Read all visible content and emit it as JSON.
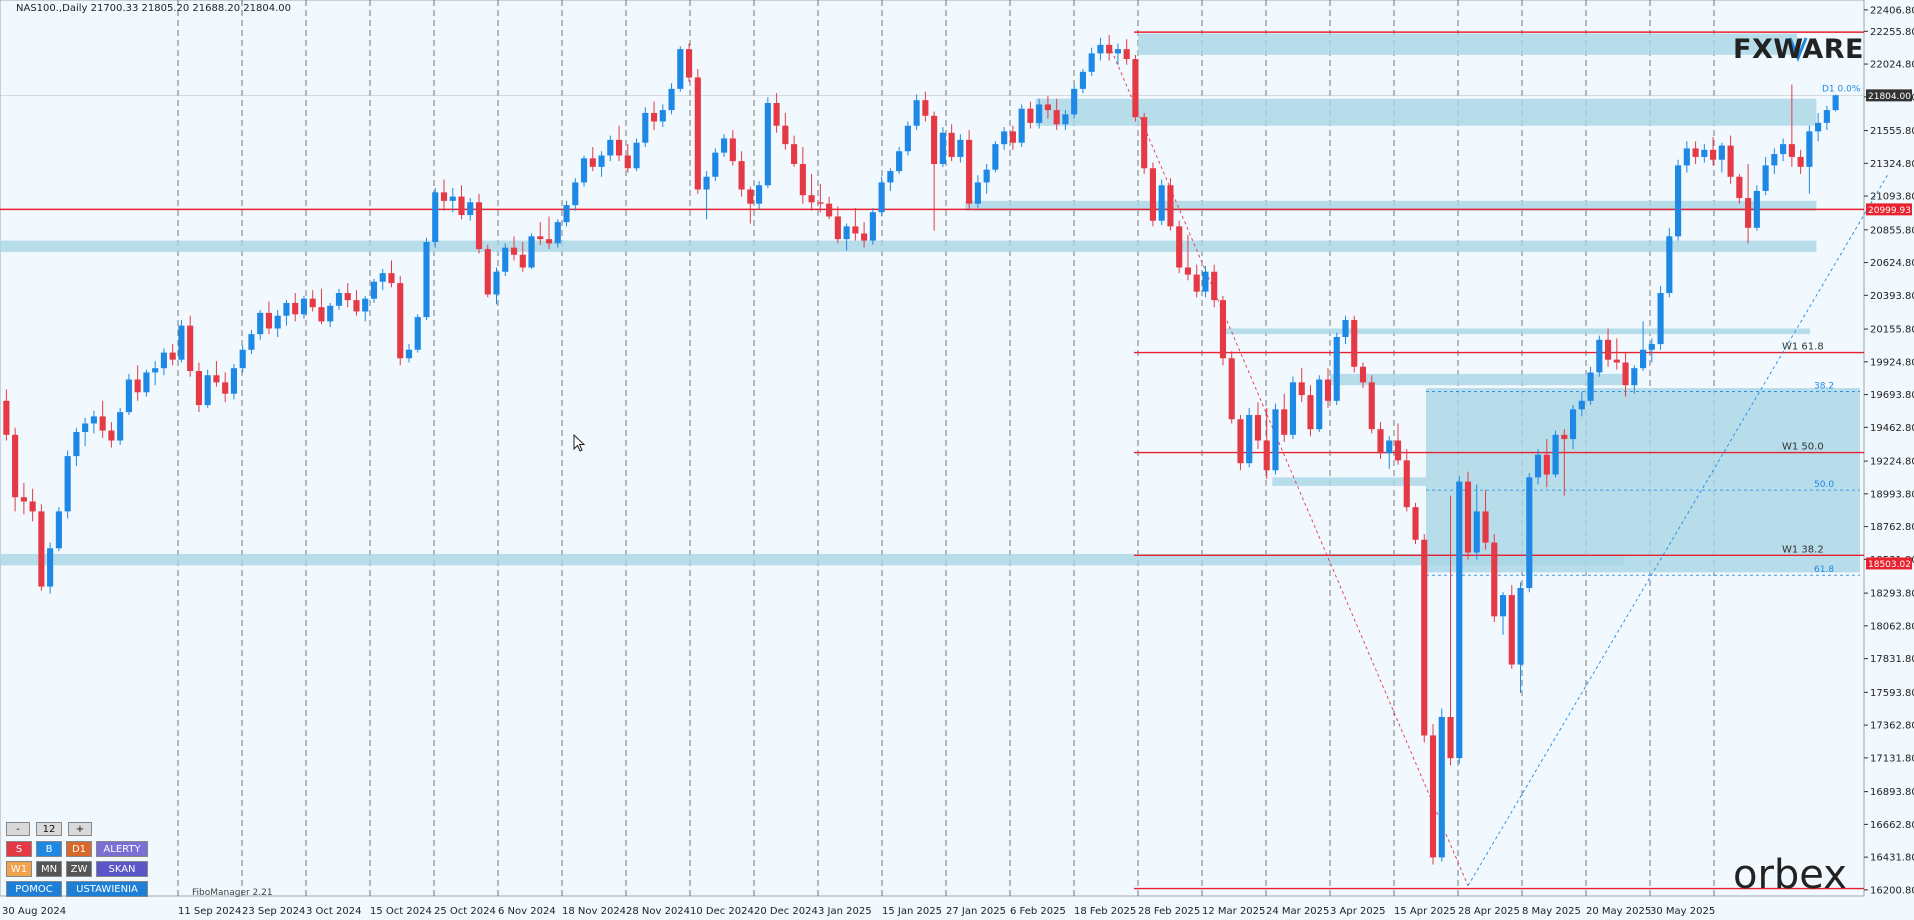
{
  "header": {
    "symbol_line": "NAS100.,Daily  21700.33 21805.20 21688.20 21804.00"
  },
  "brand": {
    "fxware": "FXWARE",
    "orbex": "orbex"
  },
  "indicator_label": "FiboManager 2.21",
  "panel": {
    "minus": "-",
    "count": "12",
    "plus": "+",
    "s": "S",
    "b": "B",
    "d1": "D1",
    "alerty": "ALERTY",
    "w1": "W1",
    "mn": "MN",
    "zw": "ZW",
    "skan": "SKAN",
    "pomoc": "POMOC",
    "ustawienia": "USTAWIENIA"
  },
  "colors": {
    "bull": "#1e88e5",
    "bear": "#e53946",
    "zone": "#a9d6e6",
    "level": "#e8212e",
    "bg": "#f1f8fe"
  },
  "chart_data": {
    "type": "candlestick",
    "ylim": [
      16200,
      22406
    ],
    "y_ticks": [
      "22406.80",
      "22255.80",
      "22024.80",
      "21793.80",
      "21555.80",
      "21324.80",
      "21093.80",
      "20855.80",
      "20624.80",
      "20393.80",
      "20155.80",
      "19924.80",
      "19693.80",
      "19462.80",
      "19224.80",
      "18993.80",
      "18762.80",
      "18531.80",
      "18293.80",
      "18062.80",
      "17831.80",
      "17593.80",
      "17362.80",
      "17131.80",
      "16893.80",
      "16662.80",
      "16431.80",
      "16200.80"
    ],
    "x_ticks": [
      "30 Aug 2024",
      "11 Sep 2024",
      "23 Sep 2024",
      "3 Oct 2024",
      "15 Oct 2024",
      "25 Oct 2024",
      "6 Nov 2024",
      "18 Nov 2024",
      "28 Nov 2024",
      "10 Dec 2024",
      "20 Dec 2024",
      "3 Jan 2025",
      "15 Jan 2025",
      "27 Jan 2025",
      "6 Feb 2025",
      "18 Feb 2025",
      "28 Feb 2025",
      "12 Mar 2025",
      "24 Mar 2025",
      "3 Apr 2025",
      "15 Apr 2025",
      "28 Apr 2025",
      "8 May 2025",
      "20 May 2025",
      "30 May 2025"
    ],
    "price_tags": [
      {
        "value": 21804.0,
        "label": "21804.00",
        "color": "#333333"
      },
      {
        "value": 20999.93,
        "label": "20999.93",
        "color": "#e8212e"
      },
      {
        "value": 18503.02,
        "label": "18503.02",
        "color": "#e8212e"
      }
    ],
    "levels": [
      {
        "value": 20999.93,
        "label": "",
        "from_tick": -1
      },
      {
        "value": 22250,
        "label": "",
        "from_tick": 15
      },
      {
        "value": 19990,
        "label": "W1 61.8",
        "from_tick": 15
      },
      {
        "value": 19285,
        "label": "W1 50.0",
        "from_tick": 15
      },
      {
        "value": 18560,
        "label": "W1 38.2",
        "from_tick": 15
      },
      {
        "value": 16210,
        "label": "",
        "from_tick": 15
      }
    ],
    "fib_dashed": [
      {
        "value": 19715,
        "label": "38.2"
      },
      {
        "value": 19020,
        "label": "50.0"
      },
      {
        "value": 18420,
        "label": "61.8"
      }
    ],
    "fib_top_label": "D1 0.0%",
    "zones": [
      {
        "y1": 22240,
        "y2": 22090,
        "from_tick": 15,
        "to_tick": 25.3
      },
      {
        "y1": 21780,
        "y2": 21590,
        "from_tick": 13.4,
        "to_tick": 25.6
      },
      {
        "y1": 21060,
        "y2": 20990,
        "from_tick": 12.3,
        "to_tick": 25.6
      },
      {
        "y1": 20780,
        "y2": 20700,
        "from_tick": -1,
        "to_tick": 25.6
      },
      {
        "y1": 20160,
        "y2": 20120,
        "from_tick": 16.3,
        "to_tick": 25.5
      },
      {
        "y1": 19840,
        "y2": 19760,
        "from_tick": 18.0,
        "to_tick": 22.6
      },
      {
        "y1": 19740,
        "y2": 18440,
        "from_tick": 19.5,
        "to_tick": 26.7
      },
      {
        "y1": 19110,
        "y2": 19050,
        "from_tick": 17.1,
        "to_tick": 19.5
      },
      {
        "y1": 18570,
        "y2": 18490,
        "from_tick": -1,
        "to_tick": 22.6
      }
    ],
    "candles": [
      [
        19650,
        19730,
        19370,
        19410
      ],
      [
        19410,
        19460,
        18870,
        18970
      ],
      [
        18970,
        19070,
        18850,
        18940
      ],
      [
        18940,
        19030,
        18800,
        18870
      ],
      [
        18870,
        18920,
        18310,
        18340
      ],
      [
        18340,
        18650,
        18290,
        18610
      ],
      [
        18610,
        18900,
        18590,
        18870
      ],
      [
        18870,
        19300,
        18820,
        19260
      ],
      [
        19260,
        19460,
        19190,
        19430
      ],
      [
        19430,
        19530,
        19330,
        19490
      ],
      [
        19490,
        19580,
        19420,
        19540
      ],
      [
        19540,
        19650,
        19390,
        19440
      ],
      [
        19440,
        19500,
        19320,
        19370
      ],
      [
        19370,
        19600,
        19340,
        19570
      ],
      [
        19570,
        19840,
        19550,
        19800
      ],
      [
        19800,
        19900,
        19650,
        19710
      ],
      [
        19710,
        19870,
        19680,
        19850
      ],
      [
        19850,
        19930,
        19760,
        19880
      ],
      [
        19880,
        20020,
        19830,
        19990
      ],
      [
        19990,
        20050,
        19900,
        19940
      ],
      [
        19940,
        20220,
        19920,
        20180
      ],
      [
        20180,
        20250,
        19820,
        19860
      ],
      [
        19860,
        19920,
        19570,
        19620
      ],
      [
        19620,
        19870,
        19600,
        19830
      ],
      [
        19830,
        19930,
        19750,
        19780
      ],
      [
        19780,
        19850,
        19640,
        19700
      ],
      [
        19700,
        19910,
        19660,
        19880
      ],
      [
        19880,
        20040,
        19850,
        20010
      ],
      [
        20010,
        20150,
        19980,
        20120
      ],
      [
        20120,
        20290,
        20080,
        20270
      ],
      [
        20270,
        20350,
        20120,
        20160
      ],
      [
        20160,
        20290,
        20100,
        20250
      ],
      [
        20250,
        20360,
        20180,
        20340
      ],
      [
        20340,
        20410,
        20210,
        20260
      ],
      [
        20260,
        20390,
        20230,
        20370
      ],
      [
        20370,
        20430,
        20280,
        20310
      ],
      [
        20310,
        20440,
        20190,
        20210
      ],
      [
        20210,
        20340,
        20170,
        20320
      ],
      [
        20320,
        20440,
        20290,
        20410
      ],
      [
        20410,
        20480,
        20310,
        20360
      ],
      [
        20360,
        20430,
        20250,
        20280
      ],
      [
        20280,
        20390,
        20210,
        20370
      ],
      [
        20370,
        20510,
        20340,
        20490
      ],
      [
        20490,
        20580,
        20430,
        20550
      ],
      [
        20550,
        20640,
        20450,
        20480
      ],
      [
        20480,
        20530,
        19900,
        19950
      ],
      [
        19950,
        20050,
        19920,
        20010
      ],
      [
        20010,
        20260,
        19990,
        20240
      ],
      [
        20240,
        20800,
        20220,
        20770
      ],
      [
        20770,
        21150,
        20730,
        21120
      ],
      [
        21120,
        21210,
        20990,
        21060
      ],
      [
        21060,
        21150,
        20980,
        21090
      ],
      [
        21090,
        21170,
        20930,
        20960
      ],
      [
        20960,
        21080,
        20920,
        21050
      ],
      [
        21050,
        21110,
        20690,
        20720
      ],
      [
        20720,
        20750,
        20380,
        20400
      ],
      [
        20400,
        20590,
        20330,
        20560
      ],
      [
        20560,
        20760,
        20530,
        20730
      ],
      [
        20730,
        20810,
        20640,
        20680
      ],
      [
        20680,
        20770,
        20560,
        20590
      ],
      [
        20590,
        20830,
        20580,
        20810
      ],
      [
        20810,
        20910,
        20750,
        20790
      ],
      [
        20790,
        20950,
        20720,
        20760
      ],
      [
        20760,
        20930,
        20730,
        20910
      ],
      [
        20910,
        21060,
        20880,
        21030
      ],
      [
        21030,
        21220,
        20990,
        21190
      ],
      [
        21190,
        21380,
        21160,
        21360
      ],
      [
        21360,
        21440,
        21270,
        21300
      ],
      [
        21300,
        21410,
        21230,
        21380
      ],
      [
        21380,
        21520,
        21340,
        21490
      ],
      [
        21490,
        21590,
        21340,
        21380
      ],
      [
        21380,
        21460,
        21260,
        21290
      ],
      [
        21290,
        21500,
        21270,
        21470
      ],
      [
        21470,
        21720,
        21440,
        21680
      ],
      [
        21680,
        21760,
        21560,
        21620
      ],
      [
        21620,
        21740,
        21580,
        21700
      ],
      [
        21700,
        21890,
        21670,
        21850
      ],
      [
        21850,
        22150,
        21830,
        22130
      ],
      [
        22130,
        22170,
        21900,
        21930
      ],
      [
        21930,
        21990,
        21110,
        21140
      ],
      [
        21140,
        21270,
        20930,
        21230
      ],
      [
        21230,
        21430,
        21200,
        21400
      ],
      [
        21400,
        21530,
        21370,
        21500
      ],
      [
        21500,
        21560,
        21310,
        21340
      ],
      [
        21340,
        21410,
        21090,
        21140
      ],
      [
        21140,
        21160,
        20900,
        21040
      ],
      [
        21040,
        21200,
        21000,
        21170
      ],
      [
        21170,
        21790,
        21150,
        21750
      ],
      [
        21750,
        21820,
        21540,
        21590
      ],
      [
        21590,
        21680,
        21420,
        21460
      ],
      [
        21460,
        21520,
        21300,
        21320
      ],
      [
        21320,
        21440,
        21040,
        21100
      ],
      [
        21100,
        21250,
        20990,
        21050
      ],
      [
        21050,
        21180,
        20980,
        21040
      ],
      [
        21040,
        21090,
        20930,
        20950
      ],
      [
        20950,
        21020,
        20760,
        20790
      ],
      [
        20790,
        20900,
        20710,
        20880
      ],
      [
        20880,
        21010,
        20780,
        20830
      ],
      [
        20830,
        20910,
        20730,
        20780
      ],
      [
        20780,
        21010,
        20750,
        20980
      ],
      [
        20980,
        21230,
        20950,
        21190
      ],
      [
        21190,
        21290,
        21130,
        21270
      ],
      [
        21270,
        21440,
        21250,
        21410
      ],
      [
        21410,
        21620,
        21380,
        21590
      ],
      [
        21590,
        21810,
        21560,
        21770
      ],
      [
        21770,
        21830,
        21620,
        21660
      ],
      [
        21660,
        21690,
        20850,
        21320
      ],
      [
        21320,
        21580,
        21300,
        21540
      ],
      [
        21540,
        21600,
        21340,
        21370
      ],
      [
        21370,
        21530,
        21330,
        21490
      ],
      [
        21490,
        21560,
        21000,
        21040
      ],
      [
        21040,
        21240,
        21010,
        21190
      ],
      [
        21190,
        21320,
        21110,
        21280
      ],
      [
        21280,
        21480,
        21260,
        21460
      ],
      [
        21460,
        21580,
        21420,
        21550
      ],
      [
        21550,
        21590,
        21420,
        21470
      ],
      [
        21470,
        21740,
        21440,
        21710
      ],
      [
        21710,
        21760,
        21570,
        21610
      ],
      [
        21610,
        21780,
        21570,
        21740
      ],
      [
        21740,
        21800,
        21640,
        21700
      ],
      [
        21700,
        21780,
        21560,
        21600
      ],
      [
        21600,
        21700,
        21560,
        21670
      ],
      [
        21670,
        21880,
        21640,
        21850
      ],
      [
        21850,
        21990,
        21820,
        21970
      ],
      [
        21970,
        22140,
        21940,
        22100
      ],
      [
        22100,
        22210,
        22050,
        22160
      ],
      [
        22160,
        22230,
        22050,
        22100
      ],
      [
        22100,
        22170,
        22020,
        22130
      ],
      [
        22130,
        22200,
        22020,
        22060
      ],
      [
        22060,
        22090,
        21620,
        21650
      ],
      [
        21650,
        21680,
        21250,
        21290
      ],
      [
        21290,
        21330,
        20880,
        20920
      ],
      [
        20920,
        21210,
        20890,
        21170
      ],
      [
        21170,
        21220,
        20850,
        20880
      ],
      [
        20880,
        20920,
        20550,
        20590
      ],
      [
        20590,
        20820,
        20500,
        20540
      ],
      [
        20540,
        20610,
        20380,
        20420
      ],
      [
        20420,
        20600,
        20380,
        20560
      ],
      [
        20560,
        20610,
        20310,
        20360
      ],
      [
        20360,
        20390,
        19900,
        19950
      ],
      [
        19950,
        20000,
        19490,
        19520
      ],
      [
        19520,
        19550,
        19160,
        19210
      ],
      [
        19210,
        19600,
        19180,
        19550
      ],
      [
        19550,
        19640,
        19310,
        19370
      ],
      [
        19370,
        19600,
        19100,
        19160
      ],
      [
        19160,
        19630,
        19130,
        19590
      ],
      [
        19590,
        19700,
        19360,
        19410
      ],
      [
        19410,
        19820,
        19380,
        19780
      ],
      [
        19780,
        19880,
        19640,
        19690
      ],
      [
        19690,
        19760,
        19400,
        19450
      ],
      [
        19450,
        19830,
        19430,
        19800
      ],
      [
        19800,
        19880,
        19600,
        19650
      ],
      [
        19650,
        20130,
        19620,
        20100
      ],
      [
        20100,
        20250,
        20050,
        20220
      ],
      [
        20220,
        20250,
        19850,
        19890
      ],
      [
        19890,
        19920,
        19740,
        19780
      ],
      [
        19780,
        19830,
        19420,
        19450
      ],
      [
        19450,
        19500,
        19240,
        19280
      ],
      [
        19280,
        19400,
        19170,
        19370
      ],
      [
        19370,
        19490,
        19200,
        19230
      ],
      [
        19230,
        19310,
        18870,
        18900
      ],
      [
        18900,
        18930,
        18640,
        18670
      ],
      [
        18670,
        18710,
        17240,
        17290
      ],
      [
        17290,
        17370,
        16380,
        16430
      ],
      [
        16430,
        17480,
        16400,
        17420
      ],
      [
        17420,
        18980,
        17080,
        17130
      ],
      [
        17130,
        19120,
        17090,
        19080
      ],
      [
        19080,
        19150,
        18530,
        18580
      ],
      [
        18580,
        19060,
        18530,
        18870
      ],
      [
        18870,
        19020,
        18600,
        18650
      ],
      [
        18650,
        18710,
        18090,
        18130
      ],
      [
        18130,
        18300,
        18000,
        18280
      ],
      [
        18280,
        18350,
        17760,
        17790
      ],
      [
        17790,
        18370,
        17590,
        18330
      ],
      [
        18330,
        19140,
        18300,
        19110
      ],
      [
        19110,
        19310,
        19060,
        19270
      ],
      [
        19270,
        19380,
        19040,
        19130
      ],
      [
        19130,
        19440,
        19110,
        19410
      ],
      [
        19410,
        19450,
        18980,
        19380
      ],
      [
        19380,
        19620,
        19310,
        19590
      ],
      [
        19590,
        19710,
        19540,
        19650
      ],
      [
        19650,
        19890,
        19620,
        19850
      ],
      [
        19850,
        20110,
        19820,
        20080
      ],
      [
        20080,
        20160,
        19890,
        19940
      ],
      [
        19940,
        20090,
        19870,
        19920
      ],
      [
        19920,
        19990,
        19680,
        19760
      ],
      [
        19760,
        19900,
        19700,
        19880
      ],
      [
        19880,
        20210,
        19860,
        20010
      ],
      [
        20010,
        20090,
        19920,
        20050
      ],
      [
        20050,
        20460,
        20010,
        20410
      ],
      [
        20410,
        20870,
        20380,
        20810
      ],
      [
        20810,
        21350,
        20780,
        21310
      ],
      [
        21310,
        21480,
        21260,
        21430
      ],
      [
        21430,
        21480,
        21320,
        21370
      ],
      [
        21370,
        21460,
        21330,
        21420
      ],
      [
        21420,
        21510,
        21310,
        21350
      ],
      [
        21350,
        21470,
        21260,
        21450
      ],
      [
        21450,
        21520,
        21180,
        21230
      ],
      [
        21230,
        21250,
        21040,
        21080
      ],
      [
        21080,
        21320,
        20760,
        20870
      ],
      [
        20870,
        21170,
        20850,
        21130
      ],
      [
        21130,
        21370,
        21100,
        21310
      ],
      [
        21310,
        21430,
        21250,
        21390
      ],
      [
        21390,
        21500,
        21340,
        21460
      ],
      [
        21460,
        21880,
        21300,
        21370
      ],
      [
        21370,
        21420,
        21250,
        21300
      ],
      [
        21300,
        21590,
        21110,
        21550
      ],
      [
        21550,
        21680,
        21480,
        21610
      ],
      [
        21610,
        21730,
        21560,
        21700
      ],
      [
        21700,
        21810,
        21690,
        21804
      ]
    ]
  }
}
